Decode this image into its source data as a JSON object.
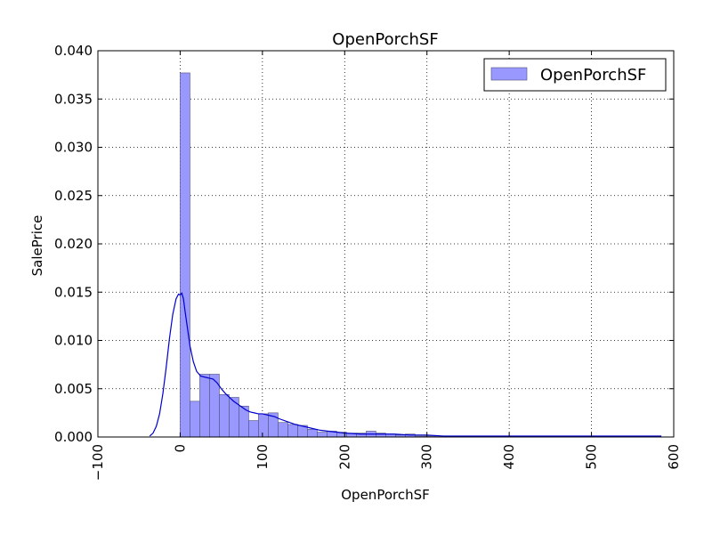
{
  "chart_data": {
    "type": "bar",
    "title": "OpenPorchSF",
    "xlabel": "OpenPorchSF",
    "ylabel": "SalePrice",
    "xlim": [
      -100,
      600
    ],
    "ylim": [
      0,
      0.04
    ],
    "xticks": [
      -100,
      0,
      100,
      200,
      300,
      400,
      500,
      600
    ],
    "xtick_labels": [
      "−100",
      "0",
      "100",
      "200",
      "300",
      "400",
      "500",
      "600"
    ],
    "yticks": [
      0,
      0.005,
      0.01,
      0.015,
      0.02,
      0.025,
      0.03,
      0.035,
      0.04
    ],
    "ytick_labels": [
      "0.000",
      "0.005",
      "0.010",
      "0.015",
      "0.020",
      "0.025",
      "0.030",
      "0.035",
      "0.040"
    ],
    "grid": true,
    "legend_position": "top-right",
    "histogram": {
      "name": "OpenPorchSF",
      "color": "#9898ff",
      "bin_width": 11.9,
      "bin_starts": [
        0,
        11.9,
        23.8,
        35.7,
        47.6,
        59.5,
        71.4,
        83.3,
        95.2,
        107.1,
        119.0,
        130.9,
        142.8,
        154.7,
        166.6,
        178.5,
        190.4,
        202.3,
        214.2,
        226.1,
        238.0,
        249.9,
        261.8,
        273.7,
        285.6,
        297.5,
        309.4,
        321.3,
        333.2,
        345.1,
        357.0,
        368.9,
        380.8,
        392.7,
        404.6,
        416.5,
        428.4,
        440.3,
        452.2,
        464.1,
        476.0,
        487.9,
        499.8,
        511.7,
        523.6,
        535.5,
        547.4
      ],
      "densities": [
        0.0377,
        0.0037,
        0.0065,
        0.0065,
        0.0044,
        0.0041,
        0.0032,
        0.0017,
        0.0024,
        0.0025,
        0.0015,
        0.0013,
        0.0012,
        0.0008,
        0.0005,
        0.0006,
        0.0005,
        0.0004,
        0.0004,
        0.0006,
        0.0004,
        0.0003,
        0.0002,
        0.0003,
        0.0001,
        0.0001,
        0.0001,
        0.0001,
        0.0,
        0.0,
        0.0,
        0.0,
        0.0,
        0.0,
        0.0001,
        0.0001,
        0.0,
        0.0,
        0.0,
        0.0,
        0.0,
        0.0,
        0.0,
        0.0,
        0.0,
        0.0,
        0.0001
      ]
    },
    "kde": {
      "color": "#0000cc",
      "x": [
        -37,
        -33,
        -29,
        -25,
        -21,
        -17,
        -13,
        -9,
        -5,
        -2,
        0,
        2,
        4,
        6,
        9,
        12,
        16,
        20,
        25,
        30,
        35,
        40,
        45,
        50,
        55,
        60,
        65,
        70,
        75,
        80,
        85,
        90,
        95,
        100,
        105,
        110,
        115,
        120,
        130,
        140,
        150,
        160,
        170,
        180,
        200,
        220,
        240,
        260,
        280,
        300,
        320,
        340,
        360,
        380,
        400,
        420,
        450,
        480,
        510,
        540,
        560,
        585
      ],
      "y": [
        0.0001,
        0.0004,
        0.0011,
        0.0024,
        0.0045,
        0.0072,
        0.0102,
        0.0127,
        0.0143,
        0.0148,
        0.0147,
        0.0149,
        0.0143,
        0.013,
        0.0112,
        0.0094,
        0.0078,
        0.0068,
        0.0063,
        0.0062,
        0.0061,
        0.006,
        0.0056,
        0.005,
        0.0045,
        0.0041,
        0.0037,
        0.0034,
        0.0031,
        0.0028,
        0.0026,
        0.0025,
        0.0024,
        0.0024,
        0.0023,
        0.0022,
        0.0021,
        0.0019,
        0.0016,
        0.0013,
        0.0011,
        0.0009,
        0.0007,
        0.0006,
        0.0004,
        0.0003,
        0.0003,
        0.0003,
        0.0002,
        0.0002,
        0.0001,
        0.0001,
        0.0001,
        0.0001,
        0.0001,
        0.0001,
        0.0001,
        0.0001,
        0.0001,
        0.0001,
        0.0001,
        0.0001
      ]
    }
  }
}
